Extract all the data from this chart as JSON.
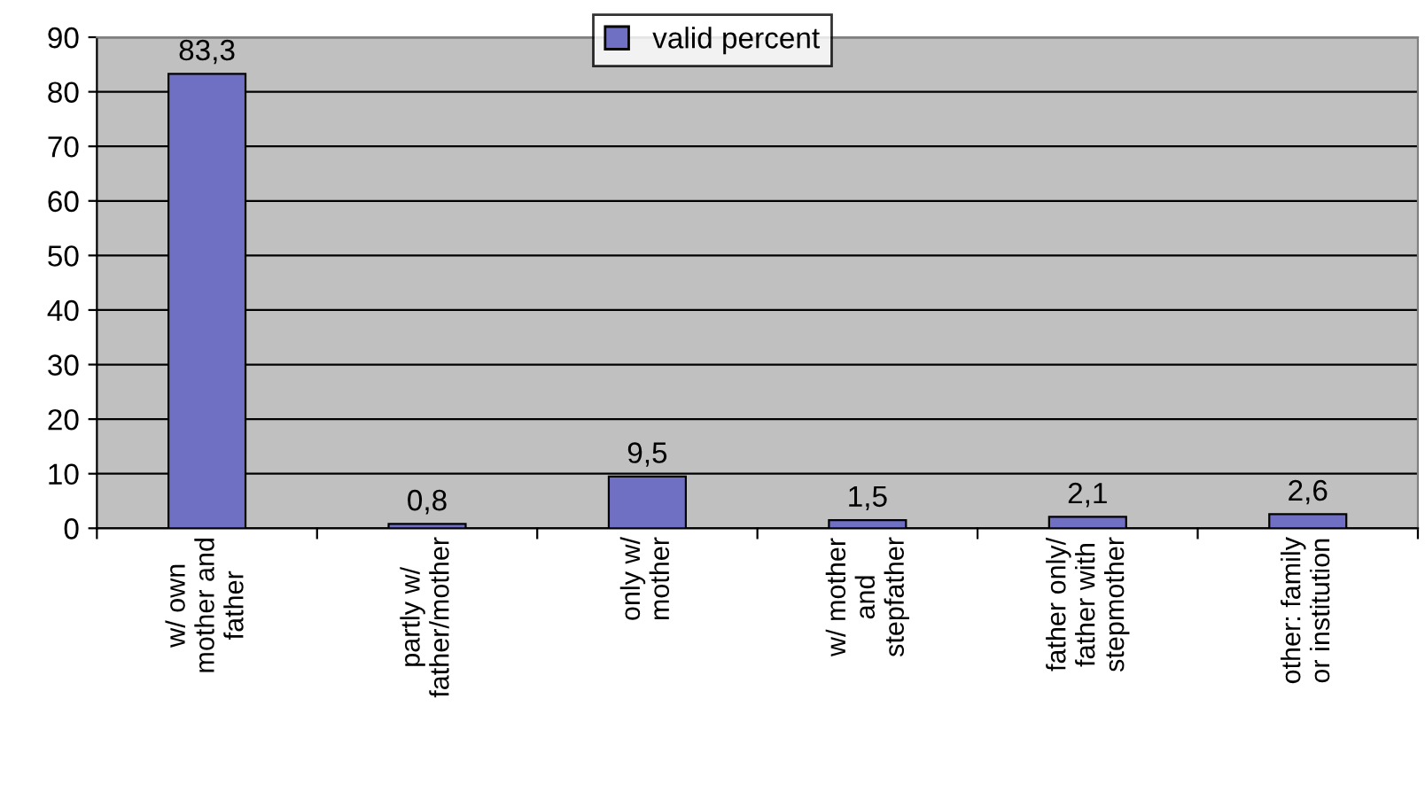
{
  "chart_data": {
    "type": "bar",
    "categories": [
      "w/ own\nmother and\nfather",
      "partly w/\nfather/mother",
      "only w/\nmother",
      "w/ mother\nand\nstepfather",
      "father only/\nfather with\nstepmother",
      "other: family\nor institution"
    ],
    "series": [
      {
        "name": "valid percent",
        "color": "#6f6fc4",
        "values": [
          83.3,
          0.8,
          9.5,
          1.5,
          2.1,
          2.6
        ],
        "value_labels": [
          "83,3",
          "0,8",
          "9,5",
          "1,5",
          "2,1",
          "2,6"
        ]
      }
    ],
    "ylim": [
      0,
      90
    ],
    "yticks": [
      0,
      10,
      20,
      30,
      40,
      50,
      60,
      70,
      80,
      90
    ],
    "grid": "y",
    "legend": "top"
  }
}
